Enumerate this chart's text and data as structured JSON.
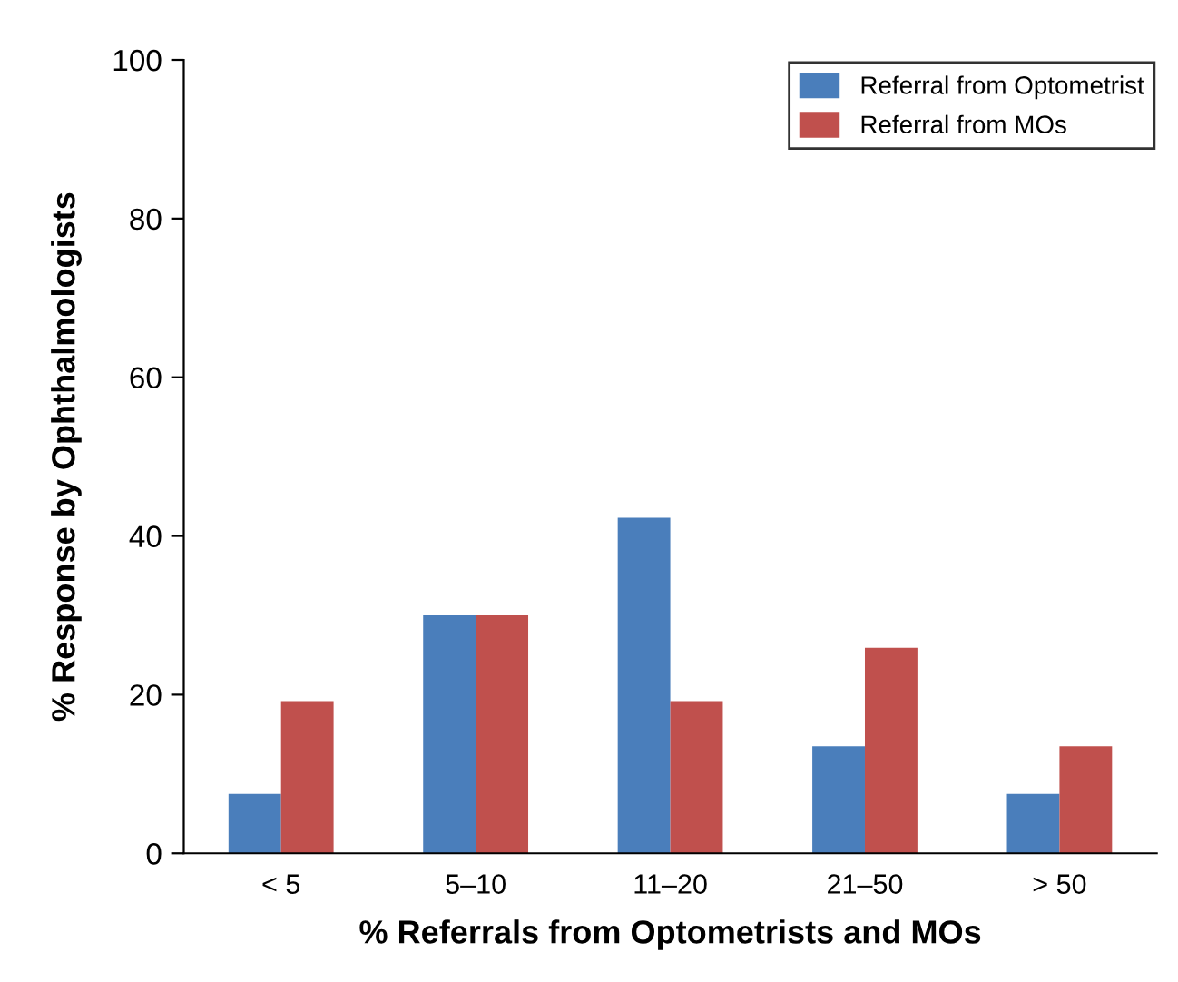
{
  "chart_data": {
    "type": "bar",
    "xlabel": "% Referrals from Optometrists and MOs",
    "ylabel": "% Response by Ophthalmologists",
    "categories": [
      "< 5",
      "5–10",
      "11–20",
      "21–50",
      "> 50"
    ],
    "series": [
      {
        "name": "Referral from Optometrist",
        "color": "#4a7ebb",
        "values": [
          7.5,
          30,
          42.3,
          13.5,
          7.5
        ]
      },
      {
        "name": "Referral from MOs",
        "color": "#c0504d",
        "values": [
          19.2,
          30,
          19.2,
          25.9,
          13.5
        ]
      }
    ],
    "ylim": [
      0,
      100
    ],
    "yticks": [
      0,
      20,
      40,
      60,
      80,
      100
    ],
    "grid": false,
    "legend": "top right"
  }
}
